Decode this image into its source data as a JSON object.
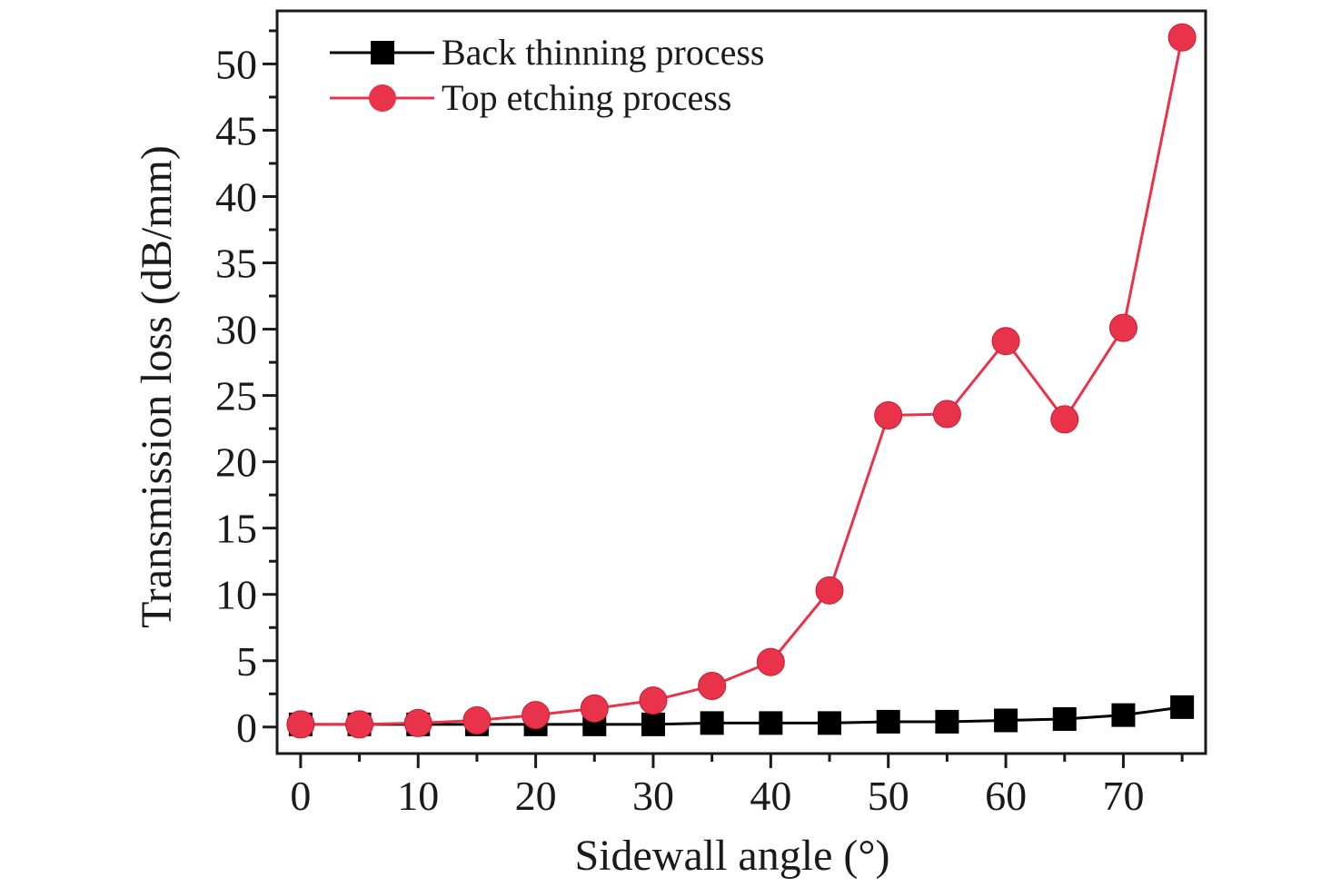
{
  "chart_data": {
    "type": "line",
    "xlabel": "Sidewall angle (°)",
    "ylabel": "Transmission loss (dB/mm)",
    "xlim": [
      -2,
      77
    ],
    "ylim": [
      -2,
      54
    ],
    "xticks": [
      0,
      10,
      20,
      30,
      40,
      50,
      60,
      70
    ],
    "yticks": [
      0,
      5,
      10,
      15,
      20,
      25,
      30,
      35,
      40,
      45,
      50
    ],
    "x": [
      0,
      5,
      10,
      15,
      20,
      25,
      30,
      35,
      40,
      45,
      50,
      55,
      60,
      65,
      70,
      75
    ],
    "legend_position": "top-left",
    "grid": false,
    "series": [
      {
        "name": "Back thinning process",
        "marker": "square",
        "color": "#000000",
        "values": [
          0.2,
          0.2,
          0.2,
          0.2,
          0.2,
          0.2,
          0.2,
          0.3,
          0.3,
          0.3,
          0.4,
          0.4,
          0.5,
          0.6,
          0.9,
          1.5
        ]
      },
      {
        "name": "Top etching process",
        "marker": "circle",
        "color": "#e8334a",
        "values": [
          0.2,
          0.2,
          0.3,
          0.5,
          0.9,
          1.4,
          2.0,
          3.1,
          4.9,
          10.3,
          23.5,
          23.6,
          29.1,
          23.2,
          30.1,
          52.0
        ]
      }
    ]
  }
}
